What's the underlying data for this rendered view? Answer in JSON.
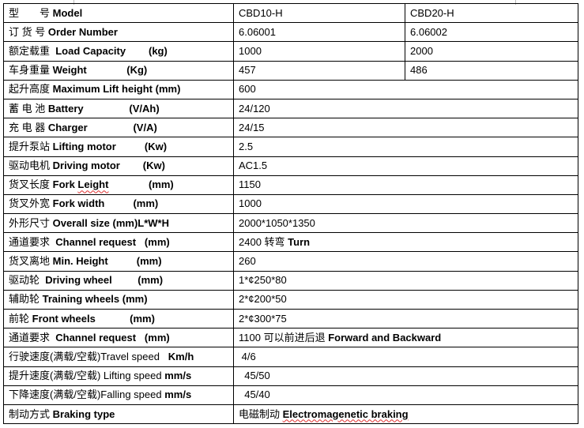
{
  "spec_table": {
    "rows": [
      {
        "label": [
          {
            "t": "型　　号 ",
            "b": false
          },
          {
            "t": "Model",
            "b": true
          }
        ],
        "values": [
          [
            {
              "t": "CBD10-H",
              "b": false
            }
          ],
          [
            {
              "t": "CBD20-H",
              "b": false
            }
          ]
        ]
      },
      {
        "label": [
          {
            "t": "订 货 号 ",
            "b": false
          },
          {
            "t": "Order Number",
            "b": true
          }
        ],
        "values": [
          [
            {
              "t": "6.06001",
              "b": false
            }
          ],
          [
            {
              "t": "6.06002",
              "b": false
            }
          ]
        ]
      },
      {
        "label": [
          {
            "t": "额定载重  ",
            "b": false
          },
          {
            "t": "Load Capacity        (kg)",
            "b": true
          }
        ],
        "values": [
          [
            {
              "t": "1000",
              "b": false
            }
          ],
          [
            {
              "t": "2000",
              "b": false
            }
          ]
        ]
      },
      {
        "label": [
          {
            "t": "车身重量 ",
            "b": false
          },
          {
            "t": "Weight              (Kg)",
            "b": true
          }
        ],
        "values": [
          [
            {
              "t": "457",
              "b": false
            }
          ],
          [
            {
              "t": "486",
              "b": false
            }
          ]
        ]
      },
      {
        "label": [
          {
            "t": "起升高度 ",
            "b": false
          },
          {
            "t": "Maximum Lift height (mm)",
            "b": true
          }
        ],
        "values": [
          [
            {
              "t": "600",
              "b": false
            }
          ]
        ]
      },
      {
        "label": [
          {
            "t": "蓄 电 池 ",
            "b": false
          },
          {
            "t": "Battery                (V/Ah)",
            "b": true
          }
        ],
        "values": [
          [
            {
              "t": "24/120",
              "b": false
            }
          ]
        ]
      },
      {
        "label": [
          {
            "t": "充 电 器 ",
            "b": false
          },
          {
            "t": "Charger                (V/A)",
            "b": true
          }
        ],
        "values": [
          [
            {
              "t": "24/15",
              "b": false
            }
          ]
        ]
      },
      {
        "label": [
          {
            "t": "提升泵站 ",
            "b": false
          },
          {
            "t": "Lifting motor          (Kw)",
            "b": true
          }
        ],
        "values": [
          [
            {
              "t": "2.5",
              "b": false
            }
          ]
        ]
      },
      {
        "label": [
          {
            "t": "驱动电机 ",
            "b": false
          },
          {
            "t": "Driving motor        (Kw)",
            "b": true
          }
        ],
        "values": [
          [
            {
              "t": "AC1.5",
              "b": false
            }
          ]
        ]
      },
      {
        "label": [
          {
            "t": "货叉长度 ",
            "b": false
          },
          {
            "t": "Fork ",
            "b": true
          },
          {
            "t": "Leight",
            "b": true,
            "sq": true
          },
          {
            "t": "              (mm)",
            "b": true
          }
        ],
        "values": [
          [
            {
              "t": "1150",
              "b": false
            }
          ]
        ]
      },
      {
        "label": [
          {
            "t": "货叉外宽 ",
            "b": false
          },
          {
            "t": "Fork width          (mm)",
            "b": true
          }
        ],
        "values": [
          [
            {
              "t": "1000",
              "b": false
            }
          ]
        ]
      },
      {
        "label": [
          {
            "t": "外形尺寸 ",
            "b": false
          },
          {
            "t": "Overall size (mm)L*W*H",
            "b": true
          }
        ],
        "values": [
          [
            {
              "t": "2000*1050*1350",
              "b": false
            }
          ]
        ]
      },
      {
        "label": [
          {
            "t": "通道要求  ",
            "b": false
          },
          {
            "t": "Channel request   (mm)",
            "b": true
          }
        ],
        "values": [
          [
            {
              "t": "2400 转弯 ",
              "b": false
            },
            {
              "t": "Turn",
              "b": true
            }
          ]
        ]
      },
      {
        "label": [
          {
            "t": "货叉离地 ",
            "b": false
          },
          {
            "t": "Min. Height          (mm)",
            "b": true
          }
        ],
        "values": [
          [
            {
              "t": "260",
              "b": false
            }
          ]
        ]
      },
      {
        "label": [
          {
            "t": "驱动轮  ",
            "b": false
          },
          {
            "t": "Driving wheel         (mm)",
            "b": true
          }
        ],
        "values": [
          [
            {
              "t": "1*¢250*80",
              "b": false
            }
          ]
        ]
      },
      {
        "label": [
          {
            "t": "辅助轮 ",
            "b": false
          },
          {
            "t": "Training wheels (mm)",
            "b": true
          }
        ],
        "values": [
          [
            {
              "t": "2*¢200*50",
              "b": false
            }
          ]
        ]
      },
      {
        "label": [
          {
            "t": "前轮 ",
            "b": false
          },
          {
            "t": "Front wheels            (mm)",
            "b": true
          }
        ],
        "values": [
          [
            {
              "t": "2*¢300*75",
              "b": false
            }
          ]
        ]
      },
      {
        "label": [
          {
            "t": "通道要求  ",
            "b": false
          },
          {
            "t": "Channel request   (mm)",
            "b": true
          }
        ],
        "values": [
          [
            {
              "t": "1100 可以前进后退 ",
              "b": false
            },
            {
              "t": "Forward and Backward",
              "b": true
            }
          ]
        ]
      },
      {
        "label": [
          {
            "t": "行驶速度(满载/空载)Travel speed   ",
            "b": false
          },
          {
            "t": "Km/h",
            "b": true
          }
        ],
        "values": [
          [
            {
              "t": " 4/6",
              "b": false
            }
          ]
        ]
      },
      {
        "label": [
          {
            "t": "提升速度(满载/空载) Lifting speed ",
            "b": false
          },
          {
            "t": "mm/s",
            "b": true
          }
        ],
        "values": [
          [
            {
              "t": "  45/50",
              "b": false
            }
          ]
        ]
      },
      {
        "label": [
          {
            "t": "下降速度(满载/空载)Falling speed ",
            "b": false
          },
          {
            "t": "mm/s",
            "b": true
          }
        ],
        "values": [
          [
            {
              "t": "  45/40",
              "b": false
            }
          ]
        ]
      },
      {
        "label": [
          {
            "t": "制动方式 ",
            "b": false
          },
          {
            "t": "Braking type",
            "b": true
          }
        ],
        "values": [
          [
            {
              "t": "电磁制动 ",
              "b": false
            },
            {
              "t": "Electromagenetic braking",
              "b": true,
              "sq": true
            }
          ]
        ]
      }
    ]
  }
}
